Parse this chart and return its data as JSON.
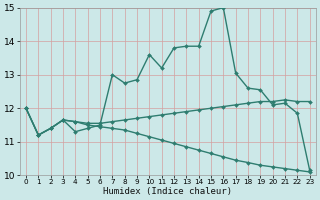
{
  "xlabel": "Humidex (Indice chaleur)",
  "ylabel": "",
  "xlim": [
    -0.5,
    23.5
  ],
  "ylim": [
    10,
    15
  ],
  "yticks": [
    10,
    11,
    12,
    13,
    14,
    15
  ],
  "xticks": [
    0,
    1,
    2,
    3,
    4,
    5,
    6,
    7,
    8,
    9,
    10,
    11,
    12,
    13,
    14,
    15,
    16,
    17,
    18,
    19,
    20,
    21,
    22,
    23
  ],
  "bg_color": "#cce8e8",
  "grid_color": "#b0d4d4",
  "line_color": "#2e7d70",
  "line1_x": [
    0,
    1,
    2,
    3,
    4,
    5,
    6,
    7,
    8,
    9,
    10,
    11,
    12,
    13,
    14,
    15,
    16,
    17,
    18,
    19,
    20,
    21,
    22,
    23
  ],
  "line1_y": [
    12.0,
    11.2,
    11.4,
    11.65,
    11.3,
    11.4,
    11.5,
    13.0,
    12.75,
    12.85,
    13.6,
    13.2,
    13.8,
    13.85,
    13.85,
    14.9,
    15.0,
    13.05,
    12.6,
    12.55,
    12.1,
    12.15,
    11.85,
    10.15
  ],
  "line2_x": [
    0,
    1,
    2,
    3,
    4,
    5,
    6,
    7,
    8,
    9,
    10,
    11,
    12,
    13,
    14,
    15,
    16,
    17,
    18,
    19,
    20,
    21,
    22,
    23
  ],
  "line2_y": [
    12.0,
    11.2,
    11.4,
    11.65,
    11.6,
    11.55,
    11.55,
    11.6,
    11.65,
    11.7,
    11.75,
    11.8,
    11.85,
    11.9,
    11.95,
    12.0,
    12.05,
    12.1,
    12.15,
    12.2,
    12.2,
    12.25,
    12.2,
    12.2
  ],
  "line3_x": [
    0,
    1,
    2,
    3,
    4,
    5,
    6,
    7,
    8,
    9,
    10,
    11,
    12,
    13,
    14,
    15,
    16,
    17,
    18,
    19,
    20,
    21,
    22,
    23
  ],
  "line3_y": [
    12.0,
    11.2,
    11.4,
    11.65,
    11.6,
    11.5,
    11.45,
    11.4,
    11.35,
    11.25,
    11.15,
    11.05,
    10.95,
    10.85,
    10.75,
    10.65,
    10.55,
    10.45,
    10.38,
    10.3,
    10.25,
    10.2,
    10.15,
    10.1
  ]
}
